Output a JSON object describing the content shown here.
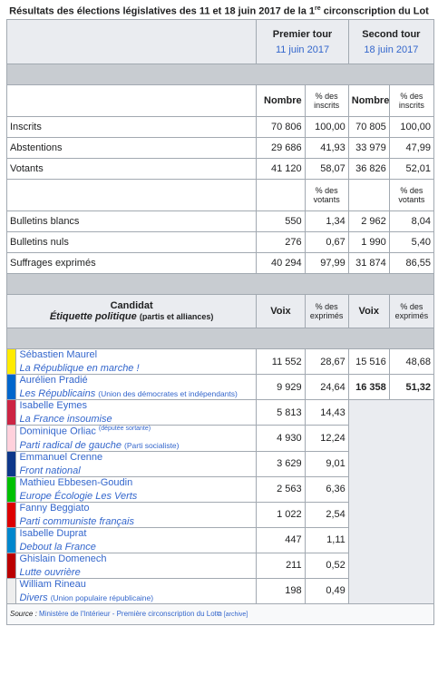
{
  "caption": {
    "before": "Résultats des élections législatives des 11 et 18 juin 2017 de la 1",
    "sup": "re",
    "after": " circonscription du Lot"
  },
  "rounds": {
    "first": {
      "label": "Premier tour",
      "date": "11 juin 2017"
    },
    "second": {
      "label": "Second tour",
      "date": "18 juin 2017"
    }
  },
  "headers": {
    "nombre": "Nombre",
    "pct_inscrits_1": "% des",
    "pct_inscrits_2": "inscrits",
    "pct_votants_1": "% des",
    "pct_votants_2": "votants",
    "candidat": "Candidat",
    "etiquette": "Étiquette politique",
    "partis": "(partis et alliances)",
    "voix": "Voix",
    "pct_exprimes_1": "% des",
    "pct_exprimes_2": "exprimés"
  },
  "turnout": [
    {
      "label": "Inscrits",
      "n1": "70 806",
      "p1": "100,00",
      "n2": "70 805",
      "p2": "100,00"
    },
    {
      "label": "Abstentions",
      "n1": "29 686",
      "p1": "41,93",
      "n2": "33 979",
      "p2": "47,99"
    },
    {
      "label": "Votants",
      "n1": "41 120",
      "p1": "58,07",
      "n2": "36 826",
      "p2": "52,01"
    }
  ],
  "ballots": [
    {
      "label": "Bulletins blancs",
      "n1": "550",
      "p1": "1,34",
      "n2": "2 962",
      "p2": "8,04"
    },
    {
      "label": "Bulletins nuls",
      "n1": "276",
      "p1": "0,67",
      "n2": "1 990",
      "p2": "5,40"
    },
    {
      "label": "Suffrages exprimés",
      "n1": "40 294",
      "p1": "97,99",
      "n2": "31 874",
      "p2": "86,55"
    }
  ],
  "candidates": [
    {
      "name": "Sébastien Maurel",
      "note_inc": "",
      "party": "La République en marche !",
      "alliance": "",
      "color": "#ffeb00",
      "v1": "11 552",
      "p1": "28,67",
      "v2": "15 516",
      "p2": "48,68"
    },
    {
      "name": "Aurélien Pradié",
      "note_inc": "",
      "party": "Les Républicains",
      "alliance": "(Union des démocrates et indépendants)",
      "color": "#0066cc",
      "v1": "9 929",
      "p1": "24,64",
      "v2": "16 358",
      "p2": "51,32"
    },
    {
      "name": "Isabelle Eymes",
      "note_inc": "",
      "party": "La France insoumise",
      "alliance": "",
      "color": "#cc2443",
      "v1": "5 813",
      "p1": "14,43"
    },
    {
      "name": "Dominique Orliac",
      "note_inc": "(députée sortante)",
      "party": "Parti radical de gauche",
      "alliance": "(Parti socialiste)",
      "color": "#ffd1dc",
      "v1": "4 930",
      "p1": "12,24"
    },
    {
      "name": "Emmanuel Crenne",
      "note_inc": "",
      "party": "Front national",
      "alliance": "",
      "color": "#0d378a",
      "v1": "3 629",
      "p1": "9,01"
    },
    {
      "name": "Mathieu Ebbesen-Goudin",
      "note_inc": "",
      "party": "Europe Écologie Les Verts",
      "alliance": "",
      "color": "#00c000",
      "v1": "2 563",
      "p1": "6,36"
    },
    {
      "name": "Fanny Beggiato",
      "note_inc": "",
      "party": "Parti communiste français",
      "alliance": "",
      "color": "#dd0000",
      "v1": "1 022",
      "p1": "2,54"
    },
    {
      "name": "Isabelle Duprat",
      "note_inc": "",
      "party": "Debout la France",
      "alliance": "",
      "color": "#0087cd",
      "v1": "447",
      "p1": "1,11"
    },
    {
      "name": "Ghislain Domenech",
      "note_inc": "",
      "party": "Lutte ouvrière",
      "alliance": "",
      "color": "#bb0000",
      "v1": "211",
      "p1": "0,52"
    },
    {
      "name": "William Rineau",
      "note_inc": "",
      "party": "Divers",
      "alliance": "(Union populaire républicaine)",
      "color": "#eeeeee",
      "v1": "198",
      "p1": "0,49"
    }
  ],
  "source": {
    "label": "Source :",
    "text": "Ministère de l'Intérieur - Première circonscription du Lot",
    "archive": "[archive]"
  }
}
